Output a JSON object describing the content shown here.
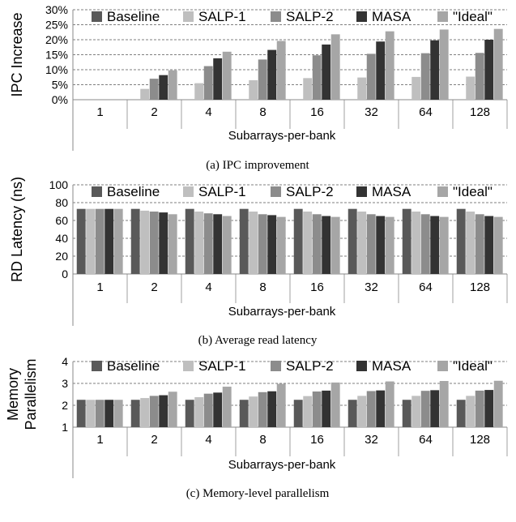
{
  "chart_data": [
    {
      "type": "bar",
      "ylabel": "IPC Increase",
      "xlabel": "Subarrays-per-bank",
      "caption": "(a)  IPC improvement",
      "categories": [
        "1",
        "2",
        "4",
        "8",
        "16",
        "32",
        "64",
        "128"
      ],
      "ylim": [
        0,
        30
      ],
      "yticks": [
        "0%",
        "5%",
        "10%",
        "15%",
        "20%",
        "25%",
        "30%"
      ],
      "grid": true,
      "legend_position": "top",
      "series": [
        {
          "name": "Baseline",
          "values": [
            0,
            0,
            0,
            0,
            0,
            0,
            0,
            0
          ]
        },
        {
          "name": "SALP-1",
          "values": [
            0,
            3.6,
            5.5,
            6.5,
            7.2,
            7.4,
            7.6,
            7.7
          ]
        },
        {
          "name": "SALP-2",
          "values": [
            0,
            7.0,
            11.2,
            13.4,
            14.8,
            15.3,
            15.5,
            15.6
          ]
        },
        {
          "name": "MASA",
          "values": [
            0,
            8.2,
            13.8,
            16.6,
            18.4,
            19.4,
            19.8,
            20.0
          ]
        },
        {
          "name": "\"Ideal\"",
          "values": [
            0,
            9.8,
            16.0,
            19.6,
            21.8,
            22.8,
            23.4,
            23.6
          ]
        }
      ]
    },
    {
      "type": "bar",
      "ylabel": "RD Latency (ns)",
      "xlabel": "Subarrays-per-bank",
      "caption": "(b)  Average read latency",
      "categories": [
        "1",
        "2",
        "4",
        "8",
        "16",
        "32",
        "64",
        "128"
      ],
      "ylim": [
        0,
        100
      ],
      "yticks": [
        "0",
        "20",
        "40",
        "60",
        "80",
        "100"
      ],
      "grid": true,
      "legend_position": "top",
      "series": [
        {
          "name": "Baseline",
          "values": [
            73,
            73,
            73,
            73,
            73,
            73,
            73,
            73
          ]
        },
        {
          "name": "SALP-1",
          "values": [
            73,
            71,
            70,
            70,
            70,
            70,
            70,
            70
          ]
        },
        {
          "name": "SALP-2",
          "values": [
            73,
            70,
            68,
            67,
            67,
            67,
            67,
            67
          ]
        },
        {
          "name": "MASA",
          "values": [
            73,
            69,
            67,
            66,
            65,
            65,
            65,
            65
          ]
        },
        {
          "name": "\"Ideal\"",
          "values": [
            73,
            67,
            65,
            64,
            64,
            64,
            64,
            64
          ]
        }
      ]
    },
    {
      "type": "bar",
      "ylabel": "Memory Parallelism",
      "xlabel": "Subarrays-per-bank",
      "caption": "(c)  Memory-level parallelism",
      "categories": [
        "1",
        "2",
        "4",
        "8",
        "16",
        "32",
        "64",
        "128"
      ],
      "ylim": [
        1,
        4
      ],
      "yticks": [
        "1",
        "2",
        "3",
        "4"
      ],
      "grid": true,
      "legend_position": "top",
      "series": [
        {
          "name": "Baseline",
          "values": [
            2.25,
            2.25,
            2.25,
            2.25,
            2.25,
            2.25,
            2.25,
            2.25
          ]
        },
        {
          "name": "SALP-1",
          "values": [
            2.25,
            2.33,
            2.37,
            2.4,
            2.42,
            2.43,
            2.43,
            2.43
          ]
        },
        {
          "name": "SALP-2",
          "values": [
            2.25,
            2.43,
            2.53,
            2.6,
            2.63,
            2.65,
            2.66,
            2.67
          ]
        },
        {
          "name": "MASA",
          "values": [
            2.25,
            2.46,
            2.58,
            2.64,
            2.67,
            2.68,
            2.69,
            2.7
          ]
        },
        {
          "name": "\"Ideal\"",
          "values": [
            2.25,
            2.62,
            2.85,
            2.98,
            3.04,
            3.09,
            3.11,
            3.12
          ]
        }
      ]
    }
  ],
  "colors": {
    "series": [
      "#595959",
      "#bfbfbf",
      "#8c8c8c",
      "#333333",
      "#a6a6a6"
    ],
    "grid": "#555555",
    "axis": "#888888"
  }
}
